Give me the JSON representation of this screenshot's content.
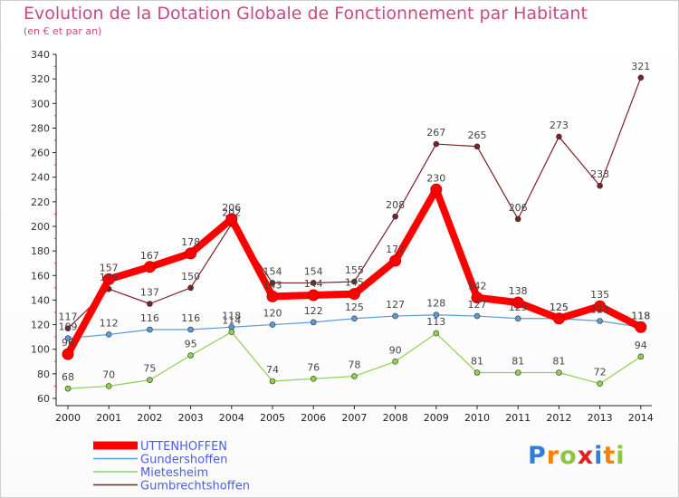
{
  "header": {
    "title": "Evolution de la Dotation Globale de Fonctionnement par Habitant",
    "subtitle": "(en € et par an)"
  },
  "logo": {
    "text": "Proxiti"
  },
  "chart_data": {
    "type": "line",
    "title": "Evolution de la Dotation Globale de Fonctionnement par Habitant",
    "subtitle": "(en € et par an)",
    "xlabel": "",
    "ylabel": "",
    "ylim": [
      60,
      340
    ],
    "ytick_step": 20,
    "grid": false,
    "legend_position": "bottom-left",
    "categories": [
      "2000",
      "2001",
      "2002",
      "2003",
      "2004",
      "2005",
      "2006",
      "2007",
      "2008",
      "2009",
      "2010",
      "2011",
      "2012",
      "2013",
      "2014"
    ],
    "series": [
      {
        "name": "UTTENHOFFEN",
        "color": "#ff0000",
        "values": [
          96,
          157,
          167,
          178,
          206,
          143,
          144,
          145,
          172,
          230,
          142,
          138,
          125,
          135,
          118
        ],
        "labels": [
          "96",
          "157",
          "167",
          "178",
          "206",
          "143",
          "144",
          "145",
          "172",
          "230",
          "142",
          "138",
          "125",
          "135",
          "118"
        ]
      },
      {
        "name": "Gundershoffen",
        "color": "#5b9bd5",
        "values": [
          109,
          112,
          116,
          116,
          118,
          120,
          122,
          125,
          127,
          128,
          127,
          125,
          125,
          123,
          118
        ],
        "labels": [
          "109",
          "112",
          "116",
          "116",
          "118",
          "120",
          "122",
          "125",
          "127",
          "128",
          "127",
          "125",
          "125",
          "123",
          "118"
        ]
      },
      {
        "name": "Mietesheim",
        "color": "#8fd14f",
        "values": [
          68,
          70,
          75,
          95,
          114,
          74,
          76,
          78,
          90,
          113,
          81,
          81,
          81,
          72,
          94
        ],
        "labels": [
          "68",
          "70",
          "75",
          "95",
          "114",
          "74",
          "76",
          "78",
          "90",
          "113",
          "81",
          "81",
          "81",
          "72",
          "94"
        ]
      },
      {
        "name": "Gumbrechtshoffen",
        "color": "#7a2228",
        "values": [
          117,
          149,
          137,
          150,
          202,
          154,
          154,
          155,
          208,
          267,
          265,
          206,
          273,
          233,
          321
        ],
        "labels": [
          "117",
          "149",
          "137",
          "150",
          "202",
          "154",
          "154",
          "155",
          "208",
          "267",
          "265",
          "206",
          "273",
          "233",
          "321"
        ]
      }
    ]
  }
}
